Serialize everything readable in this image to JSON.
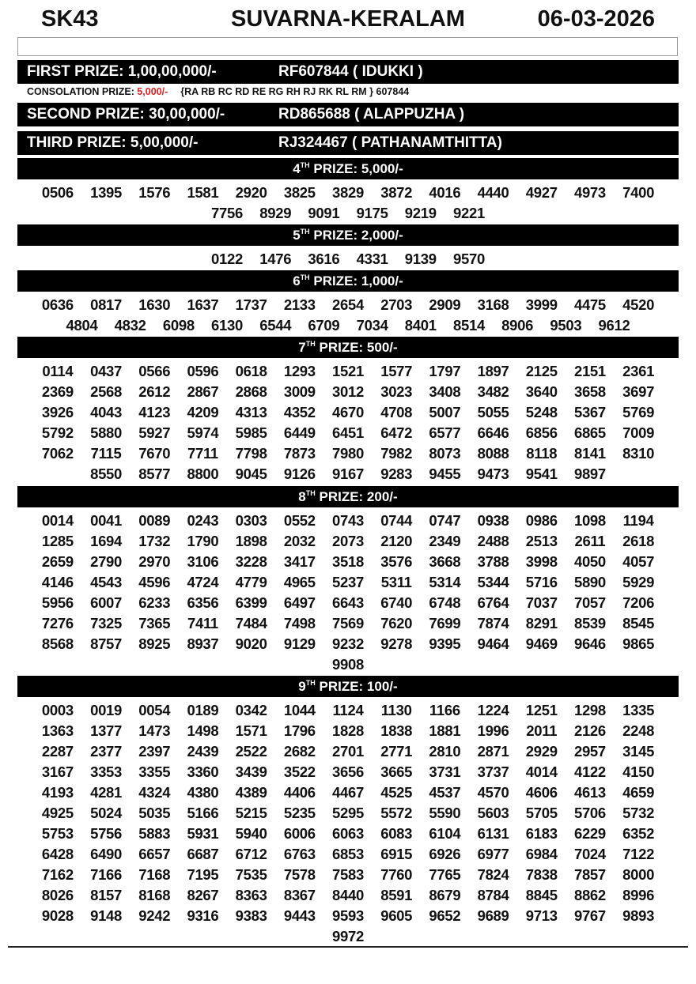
{
  "header": {
    "series": "SK43",
    "title": "SUVARNA-KERALAM",
    "date": "06-03-2026"
  },
  "first": {
    "label": "FIRST PRIZE: 1,00,00,000/-",
    "winner": "RF607844 ( IDUKKI )"
  },
  "consolation": {
    "label": "CONSOLATION PRIZE: ",
    "amount": "5,000/-",
    "series": "{RA RB RC RD RE RG RH RJ RK RL RM } 607844",
    "amount_color": "#e02020"
  },
  "second": {
    "label": "SECOND PRIZE: 30,00,000/-",
    "winner": "RD865688 ( ALAPPUZHA )"
  },
  "third": {
    "label": "THIRD PRIZE: 5,00,000/-",
    "winner": "RJ324467 ( PATHANAMTHITTA)"
  },
  "sections": [
    {
      "ord": "4",
      "sup": "TH",
      "label": " PRIZE: 5,000/-",
      "numbers": [
        "0506",
        "1395",
        "1576",
        "1581",
        "2920",
        "3825",
        "3829",
        "3872",
        "4016",
        "4440",
        "4927",
        "4973",
        "7400",
        "7756",
        "8929",
        "9091",
        "9175",
        "9219",
        "9221"
      ]
    },
    {
      "ord": "5",
      "sup": "TH",
      "label": " PRIZE: 2,000/-",
      "numbers": [
        "0122",
        "1476",
        "3616",
        "4331",
        "9139",
        "9570"
      ]
    },
    {
      "ord": "6",
      "sup": "TH",
      "label": " PRIZE: 1,000/-",
      "numbers": [
        "0636",
        "0817",
        "1630",
        "1637",
        "1737",
        "2133",
        "2654",
        "2703",
        "2909",
        "3168",
        "3999",
        "4475",
        "4520",
        "4804",
        "4832",
        "6098",
        "6130",
        "6544",
        "6709",
        "7034",
        "8401",
        "8514",
        "8906",
        "9503",
        "9612"
      ]
    },
    {
      "ord": "7",
      "sup": "TH",
      "label": " PRIZE: 500/-",
      "numbers": [
        "0114",
        "0437",
        "0566",
        "0596",
        "0618",
        "1293",
        "1521",
        "1577",
        "1797",
        "1897",
        "2125",
        "2151",
        "2361",
        "2369",
        "2568",
        "2612",
        "2867",
        "2868",
        "3009",
        "3012",
        "3023",
        "3408",
        "3482",
        "3640",
        "3658",
        "3697",
        "3926",
        "4043",
        "4123",
        "4209",
        "4313",
        "4352",
        "4670",
        "4708",
        "5007",
        "5055",
        "5248",
        "5367",
        "5769",
        "5792",
        "5880",
        "5927",
        "5974",
        "5985",
        "6449",
        "6451",
        "6472",
        "6577",
        "6646",
        "6856",
        "6865",
        "7009",
        "7062",
        "7115",
        "7670",
        "7711",
        "7798",
        "7873",
        "7980",
        "7982",
        "8073",
        "8088",
        "8118",
        "8141",
        "8310",
        "8550",
        "8577",
        "8800",
        "9045",
        "9126",
        "9167",
        "9283",
        "9455",
        "9473",
        "9541",
        "9897"
      ]
    },
    {
      "ord": "8",
      "sup": "TH",
      "label": " PRIZE: 200/-",
      "numbers": [
        "0014",
        "0041",
        "0089",
        "0243",
        "0303",
        "0552",
        "0743",
        "0744",
        "0747",
        "0938",
        "0986",
        "1098",
        "1194",
        "1285",
        "1694",
        "1732",
        "1790",
        "1898",
        "2032",
        "2073",
        "2120",
        "2349",
        "2488",
        "2513",
        "2611",
        "2618",
        "2659",
        "2790",
        "2970",
        "3106",
        "3228",
        "3417",
        "3518",
        "3576",
        "3668",
        "3788",
        "3998",
        "4050",
        "4057",
        "4146",
        "4543",
        "4596",
        "4724",
        "4779",
        "4965",
        "5237",
        "5311",
        "5314",
        "5344",
        "5716",
        "5890",
        "5929",
        "5956",
        "6007",
        "6233",
        "6356",
        "6399",
        "6497",
        "6643",
        "6740",
        "6748",
        "6764",
        "7037",
        "7057",
        "7206",
        "7276",
        "7325",
        "7365",
        "7411",
        "7484",
        "7498",
        "7569",
        "7620",
        "7699",
        "7874",
        "8291",
        "8539",
        "8545",
        "8568",
        "8757",
        "8925",
        "8937",
        "9020",
        "9129",
        "9232",
        "9278",
        "9395",
        "9464",
        "9469",
        "9646",
        "9865",
        "9908"
      ]
    },
    {
      "ord": "9",
      "sup": "TH",
      "label": " PRIZE: 100/-",
      "numbers": [
        "0003",
        "0019",
        "0054",
        "0189",
        "0342",
        "1044",
        "1124",
        "1130",
        "1166",
        "1224",
        "1251",
        "1298",
        "1335",
        "1363",
        "1377",
        "1473",
        "1498",
        "1571",
        "1796",
        "1828",
        "1838",
        "1881",
        "1996",
        "2011",
        "2126",
        "2248",
        "2287",
        "2377",
        "2397",
        "2439",
        "2522",
        "2682",
        "2701",
        "2771",
        "2810",
        "2871",
        "2929",
        "2957",
        "3145",
        "3167",
        "3353",
        "3355",
        "3360",
        "3439",
        "3522",
        "3656",
        "3665",
        "3731",
        "3737",
        "4014",
        "4122",
        "4150",
        "4193",
        "4281",
        "4324",
        "4380",
        "4389",
        "4406",
        "4467",
        "4525",
        "4537",
        "4570",
        "4606",
        "4613",
        "4659",
        "4925",
        "5024",
        "5035",
        "5166",
        "5215",
        "5235",
        "5295",
        "5572",
        "5590",
        "5603",
        "5705",
        "5706",
        "5732",
        "5753",
        "5756",
        "5883",
        "5931",
        "5940",
        "6006",
        "6063",
        "6083",
        "6104",
        "6131",
        "6183",
        "6229",
        "6352",
        "6428",
        "6490",
        "6657",
        "6687",
        "6712",
        "6763",
        "6853",
        "6915",
        "6926",
        "6977",
        "6984",
        "7024",
        "7122",
        "7162",
        "7166",
        "7168",
        "7195",
        "7535",
        "7578",
        "7583",
        "7760",
        "7765",
        "7824",
        "7838",
        "7857",
        "8000",
        "8026",
        "8157",
        "8168",
        "8267",
        "8363",
        "8367",
        "8440",
        "8591",
        "8679",
        "8784",
        "8845",
        "8862",
        "8996",
        "9028",
        "9148",
        "9242",
        "9316",
        "9383",
        "9443",
        "9593",
        "9605",
        "9652",
        "9689",
        "9713",
        "9767",
        "9893",
        "9972"
      ]
    }
  ]
}
